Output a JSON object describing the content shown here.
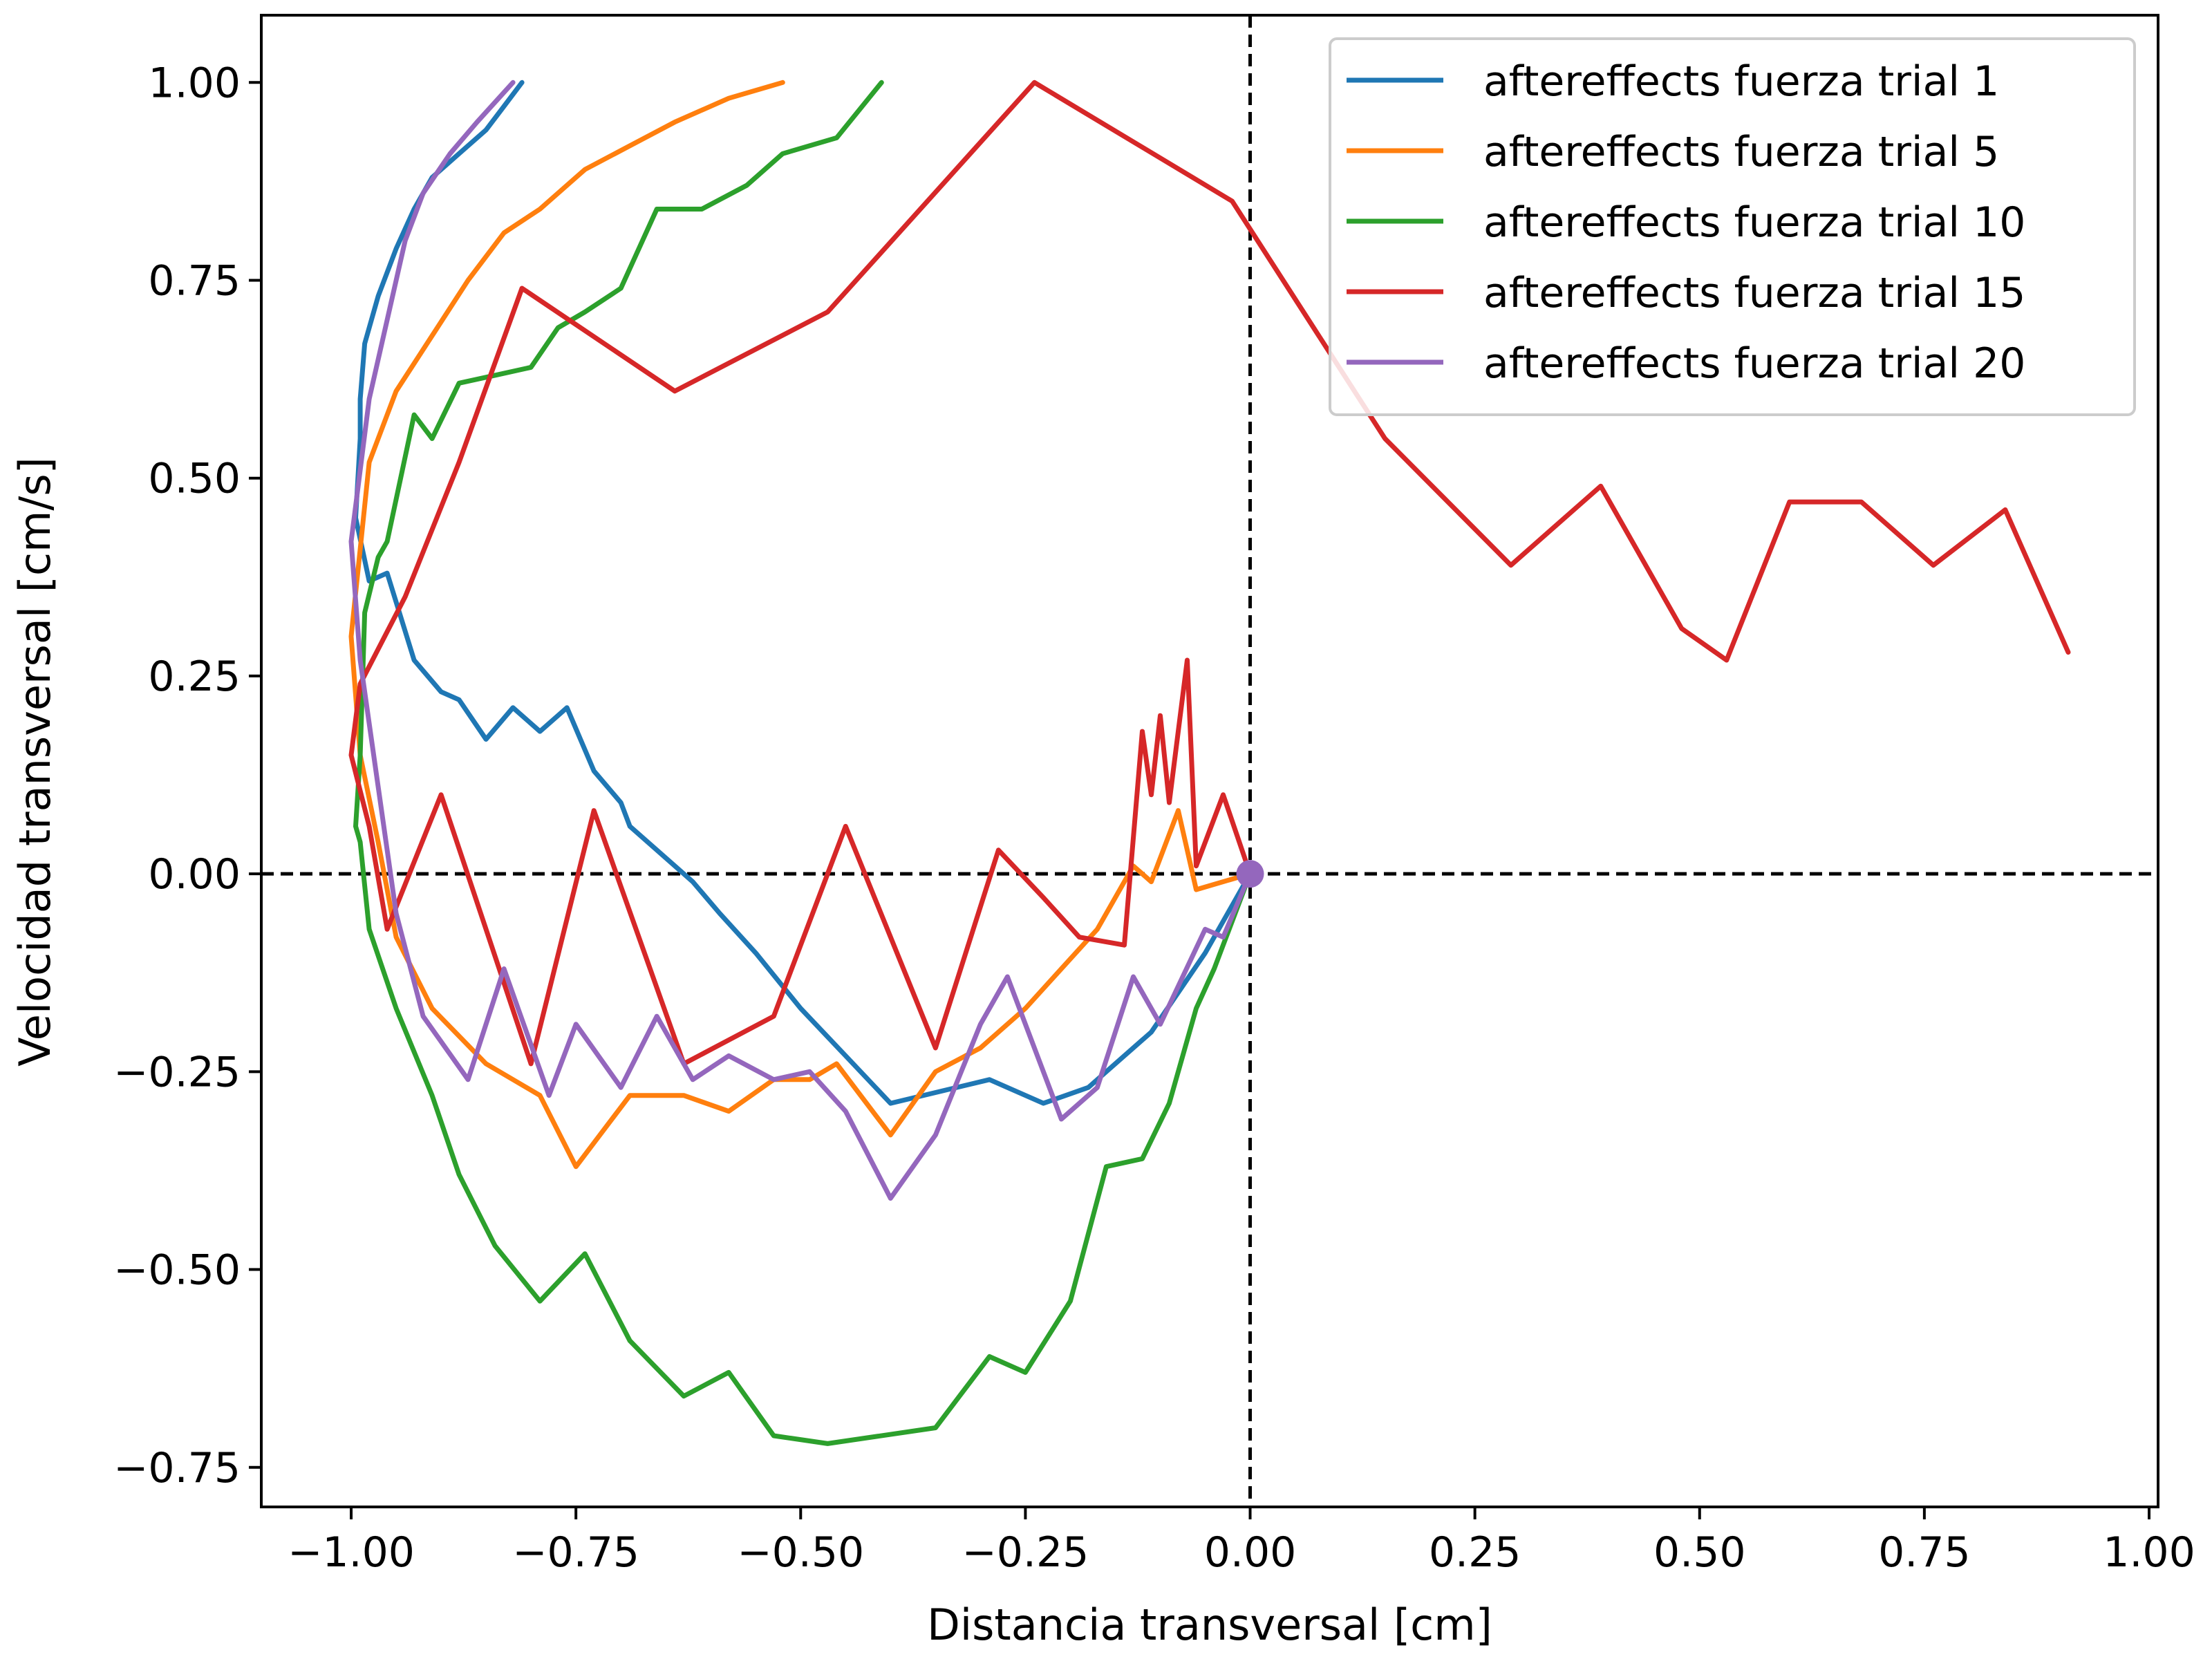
{
  "chart_data": {
    "type": "line",
    "title": "",
    "xlabel": "Distancia transversal [cm]",
    "ylabel": "Velocidad transversal [cm/s]",
    "xlim": [
      -1.1,
      1.01
    ],
    "ylim": [
      -0.8,
      1.085
    ],
    "xticks": [
      -1.0,
      -0.75,
      -0.5,
      -0.25,
      0.0,
      0.25,
      0.5,
      0.75,
      1.0
    ],
    "xtick_labels": [
      "−1.00",
      "−0.75",
      "−0.50",
      "−0.25",
      "0.00",
      "0.25",
      "0.50",
      "0.75",
      "1.00"
    ],
    "yticks": [
      -0.75,
      -0.5,
      -0.25,
      0.0,
      0.25,
      0.5,
      0.75,
      1.0
    ],
    "ytick_labels": [
      "−0.75",
      "−0.50",
      "−0.25",
      "0.00",
      "0.25",
      "0.50",
      "0.75",
      "1.00"
    ],
    "grid": false,
    "legend_position": "top-right",
    "reference_lines": {
      "x": 0.0,
      "y": 0.0,
      "style": "dashed",
      "color": "#000000"
    },
    "origin_marker": {
      "x": 0.0,
      "y": 0.0,
      "color": "#9467bd"
    },
    "series": [
      {
        "name": "aftereffects fuerza trial 1",
        "color": "#1f77b4",
        "points": [
          [
            0.0,
            0.0
          ],
          [
            -0.05,
            -0.1
          ],
          [
            -0.11,
            -0.2
          ],
          [
            -0.14,
            -0.23
          ],
          [
            -0.18,
            -0.27
          ],
          [
            -0.23,
            -0.29
          ],
          [
            -0.29,
            -0.26
          ],
          [
            -0.4,
            -0.29
          ],
          [
            -0.45,
            -0.23
          ],
          [
            -0.5,
            -0.17
          ],
          [
            -0.55,
            -0.1
          ],
          [
            -0.59,
            -0.05
          ],
          [
            -0.62,
            -0.01
          ],
          [
            -0.66,
            0.03
          ],
          [
            -0.69,
            0.06
          ],
          [
            -0.7,
            0.09
          ],
          [
            -0.73,
            0.13
          ],
          [
            -0.76,
            0.21
          ],
          [
            -0.79,
            0.18
          ],
          [
            -0.82,
            0.21
          ],
          [
            -0.85,
            0.17
          ],
          [
            -0.88,
            0.22
          ],
          [
            -0.9,
            0.23
          ],
          [
            -0.93,
            0.27
          ],
          [
            -0.96,
            0.38
          ],
          [
            -0.98,
            0.37
          ],
          [
            -0.995,
            0.45
          ],
          [
            -0.99,
            0.55
          ],
          [
            -0.99,
            0.6
          ],
          [
            -0.985,
            0.67
          ],
          [
            -0.97,
            0.73
          ],
          [
            -0.95,
            0.79
          ],
          [
            -0.93,
            0.84
          ],
          [
            -0.91,
            0.88
          ],
          [
            -0.88,
            0.91
          ],
          [
            -0.85,
            0.94
          ],
          [
            -0.83,
            0.97
          ],
          [
            -0.81,
            1.0
          ]
        ]
      },
      {
        "name": "aftereffects fuerza trial 5",
        "color": "#ff7f0e",
        "points": [
          [
            0.0,
            0.0
          ],
          [
            -0.06,
            -0.02
          ],
          [
            -0.08,
            0.08
          ],
          [
            -0.11,
            -0.01
          ],
          [
            -0.13,
            0.01
          ],
          [
            -0.17,
            -0.07
          ],
          [
            -0.21,
            -0.12
          ],
          [
            -0.25,
            -0.17
          ],
          [
            -0.3,
            -0.22
          ],
          [
            -0.35,
            -0.25
          ],
          [
            -0.4,
            -0.33
          ],
          [
            -0.46,
            -0.24
          ],
          [
            -0.49,
            -0.26
          ],
          [
            -0.53,
            -0.26
          ],
          [
            -0.58,
            -0.3
          ],
          [
            -0.63,
            -0.28
          ],
          [
            -0.69,
            -0.28
          ],
          [
            -0.75,
            -0.37
          ],
          [
            -0.79,
            -0.28
          ],
          [
            -0.85,
            -0.24
          ],
          [
            -0.91,
            -0.17
          ],
          [
            -0.95,
            -0.08
          ],
          [
            -0.97,
            0.04
          ],
          [
            -0.99,
            0.15
          ],
          [
            -1.0,
            0.3
          ],
          [
            -0.98,
            0.52
          ],
          [
            -0.95,
            0.61
          ],
          [
            -0.91,
            0.68
          ],
          [
            -0.87,
            0.75
          ],
          [
            -0.83,
            0.81
          ],
          [
            -0.79,
            0.84
          ],
          [
            -0.74,
            0.89
          ],
          [
            -0.69,
            0.92
          ],
          [
            -0.64,
            0.95
          ],
          [
            -0.58,
            0.98
          ],
          [
            -0.52,
            1.0
          ]
        ]
      },
      {
        "name": "aftereffects fuerza trial 10",
        "color": "#2ca02c",
        "points": [
          [
            0.0,
            0.0
          ],
          [
            -0.04,
            -0.12
          ],
          [
            -0.06,
            -0.17
          ],
          [
            -0.09,
            -0.29
          ],
          [
            -0.12,
            -0.36
          ],
          [
            -0.16,
            -0.37
          ],
          [
            -0.2,
            -0.54
          ],
          [
            -0.25,
            -0.63
          ],
          [
            -0.29,
            -0.61
          ],
          [
            -0.35,
            -0.7
          ],
          [
            -0.47,
            -0.72
          ],
          [
            -0.53,
            -0.71
          ],
          [
            -0.58,
            -0.63
          ],
          [
            -0.63,
            -0.66
          ],
          [
            -0.69,
            -0.59
          ],
          [
            -0.74,
            -0.48
          ],
          [
            -0.79,
            -0.54
          ],
          [
            -0.84,
            -0.47
          ],
          [
            -0.88,
            -0.38
          ],
          [
            -0.91,
            -0.28
          ],
          [
            -0.95,
            -0.17
          ],
          [
            -0.98,
            -0.07
          ],
          [
            -0.99,
            0.04
          ],
          [
            -0.995,
            0.06
          ],
          [
            -0.99,
            0.15
          ],
          [
            -0.985,
            0.33
          ],
          [
            -0.97,
            0.4
          ],
          [
            -0.96,
            0.42
          ],
          [
            -0.93,
            0.58
          ],
          [
            -0.91,
            0.55
          ],
          [
            -0.88,
            0.62
          ],
          [
            -0.84,
            0.63
          ],
          [
            -0.8,
            0.64
          ],
          [
            -0.77,
            0.69
          ],
          [
            -0.74,
            0.71
          ],
          [
            -0.7,
            0.74
          ],
          [
            -0.66,
            0.84
          ],
          [
            -0.61,
            0.84
          ],
          [
            -0.56,
            0.87
          ],
          [
            -0.52,
            0.91
          ],
          [
            -0.46,
            0.93
          ],
          [
            -0.41,
            1.0
          ]
        ]
      },
      {
        "name": "aftereffects fuerza trial 15",
        "color": "#d62728",
        "points": [
          [
            0.0,
            0.0
          ],
          [
            -0.03,
            0.1
          ],
          [
            -0.06,
            0.01
          ],
          [
            -0.07,
            0.27
          ],
          [
            -0.09,
            0.09
          ],
          [
            -0.1,
            0.2
          ],
          [
            -0.11,
            0.1
          ],
          [
            -0.12,
            0.18
          ],
          [
            -0.14,
            -0.09
          ],
          [
            -0.19,
            -0.08
          ],
          [
            -0.23,
            -0.03
          ],
          [
            -0.28,
            0.03
          ],
          [
            -0.35,
            -0.22
          ],
          [
            -0.45,
            0.06
          ],
          [
            -0.53,
            -0.18
          ],
          [
            -0.63,
            -0.24
          ],
          [
            -0.73,
            0.08
          ],
          [
            -0.8,
            -0.24
          ],
          [
            -0.9,
            0.1
          ],
          [
            -0.96,
            -0.07
          ],
          [
            -0.98,
            0.06
          ],
          [
            -1.0,
            0.15
          ],
          [
            -0.99,
            0.24
          ],
          [
            -0.94,
            0.35
          ],
          [
            -0.88,
            0.52
          ],
          [
            -0.81,
            0.74
          ],
          [
            -0.64,
            0.61
          ],
          [
            -0.47,
            0.71
          ],
          [
            -0.24,
            1.0
          ],
          [
            -0.02,
            0.85
          ],
          [
            0.15,
            0.55
          ],
          [
            0.29,
            0.39
          ],
          [
            0.39,
            0.49
          ],
          [
            0.48,
            0.31
          ],
          [
            0.53,
            0.27
          ],
          [
            0.6,
            0.47
          ],
          [
            0.68,
            0.47
          ],
          [
            0.76,
            0.39
          ],
          [
            0.84,
            0.46
          ],
          [
            0.91,
            0.28
          ]
        ]
      },
      {
        "name": "aftereffects fuerza trial 20",
        "color": "#9467bd",
        "points": [
          [
            0.0,
            0.0
          ],
          [
            -0.03,
            -0.08
          ],
          [
            -0.05,
            -0.07
          ],
          [
            -0.1,
            -0.19
          ],
          [
            -0.13,
            -0.13
          ],
          [
            -0.17,
            -0.27
          ],
          [
            -0.21,
            -0.31
          ],
          [
            -0.27,
            -0.13
          ],
          [
            -0.3,
            -0.19
          ],
          [
            -0.35,
            -0.33
          ],
          [
            -0.4,
            -0.41
          ],
          [
            -0.45,
            -0.3
          ],
          [
            -0.49,
            -0.25
          ],
          [
            -0.53,
            -0.26
          ],
          [
            -0.58,
            -0.23
          ],
          [
            -0.62,
            -0.26
          ],
          [
            -0.66,
            -0.18
          ],
          [
            -0.7,
            -0.27
          ],
          [
            -0.75,
            -0.19
          ],
          [
            -0.78,
            -0.28
          ],
          [
            -0.83,
            -0.12
          ],
          [
            -0.87,
            -0.26
          ],
          [
            -0.92,
            -0.18
          ],
          [
            -0.95,
            -0.05
          ],
          [
            -0.97,
            0.11
          ],
          [
            -0.99,
            0.27
          ],
          [
            -1.0,
            0.42
          ],
          [
            -0.98,
            0.6
          ],
          [
            -0.96,
            0.7
          ],
          [
            -0.94,
            0.8
          ],
          [
            -0.92,
            0.86
          ],
          [
            -0.89,
            0.91
          ],
          [
            -0.86,
            0.95
          ],
          [
            -0.82,
            1.0
          ]
        ]
      }
    ]
  }
}
